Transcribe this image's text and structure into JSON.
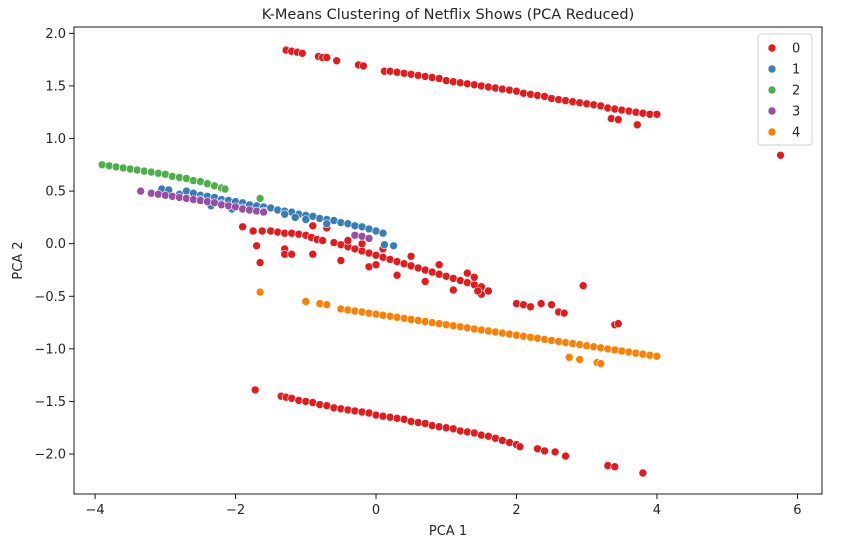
{
  "chart_data": {
    "type": "scatter",
    "title": "K-Means Clustering of Netflix Shows (PCA Reduced)",
    "xlabel": "PCA 1",
    "ylabel": "PCA 2",
    "xlim": [
      -4.3,
      6.35
    ],
    "ylim": [
      -2.38,
      2.06
    ],
    "xticks": [
      -4,
      -2,
      0,
      2,
      4,
      6
    ],
    "yticks": [
      -2.0,
      -1.5,
      -1.0,
      -0.5,
      0.0,
      0.5,
      1.0,
      1.5,
      2.0
    ],
    "xtick_labels": [
      "−4",
      "−2",
      "0",
      "2",
      "4",
      "6"
    ],
    "ytick_labels": [
      "−2.0",
      "−1.5",
      "−1.0",
      "−0.5",
      "0.0",
      "0.5",
      "1.0",
      "1.5",
      "2.0"
    ],
    "grid": false,
    "legend_position": "top-right",
    "series": [
      {
        "name": "0",
        "color": "#e41a1c",
        "points": [
          [
            -1.28,
            1.84
          ],
          [
            -1.2,
            1.83
          ],
          [
            -1.12,
            1.82
          ],
          [
            -1.05,
            1.81
          ],
          [
            -0.82,
            1.78
          ],
          [
            -0.76,
            1.77
          ],
          [
            -0.7,
            1.77
          ],
          [
            -0.56,
            1.74
          ],
          [
            -0.25,
            1.7
          ],
          [
            -0.18,
            1.69
          ],
          [
            0.12,
            1.64
          ],
          [
            0.2,
            1.64
          ],
          [
            0.3,
            1.63
          ],
          [
            0.4,
            1.62
          ],
          [
            0.5,
            1.61
          ],
          [
            0.6,
            1.6
          ],
          [
            0.7,
            1.59
          ],
          [
            0.8,
            1.58
          ],
          [
            0.9,
            1.57
          ],
          [
            1.0,
            1.55
          ],
          [
            1.1,
            1.54
          ],
          [
            1.2,
            1.53
          ],
          [
            1.3,
            1.52
          ],
          [
            1.4,
            1.51
          ],
          [
            1.5,
            1.5
          ],
          [
            1.6,
            1.49
          ],
          [
            1.7,
            1.48
          ],
          [
            1.8,
            1.47
          ],
          [
            1.9,
            1.46
          ],
          [
            2.0,
            1.45
          ],
          [
            2.1,
            1.43
          ],
          [
            2.2,
            1.42
          ],
          [
            2.3,
            1.41
          ],
          [
            2.4,
            1.4
          ],
          [
            2.5,
            1.38
          ],
          [
            2.6,
            1.37
          ],
          [
            2.7,
            1.36
          ],
          [
            2.8,
            1.35
          ],
          [
            2.9,
            1.34
          ],
          [
            3.0,
            1.33
          ],
          [
            3.1,
            1.32
          ],
          [
            3.2,
            1.31
          ],
          [
            3.3,
            1.29
          ],
          [
            3.4,
            1.28
          ],
          [
            3.5,
            1.27
          ],
          [
            3.6,
            1.26
          ],
          [
            3.7,
            1.25
          ],
          [
            3.8,
            1.24
          ],
          [
            3.9,
            1.23
          ],
          [
            4.0,
            1.23
          ],
          [
            3.35,
            1.19
          ],
          [
            3.45,
            1.18
          ],
          [
            3.72,
            1.13
          ],
          [
            5.76,
            0.84
          ],
          [
            -1.9,
            0.16
          ],
          [
            -1.75,
            0.12
          ],
          [
            -1.62,
            0.12
          ],
          [
            -1.5,
            0.12
          ],
          [
            -1.4,
            0.11
          ],
          [
            -1.3,
            0.1
          ],
          [
            -1.2,
            0.1
          ],
          [
            -1.1,
            0.09
          ],
          [
            -1.0,
            0.08
          ],
          [
            -0.92,
            0.06
          ],
          [
            -0.84,
            0.04
          ],
          [
            -0.76,
            0.03
          ],
          [
            -0.6,
            0.01
          ],
          [
            -0.5,
            -0.01
          ],
          [
            -0.4,
            -0.03
          ],
          [
            -0.3,
            -0.05
          ],
          [
            -0.2,
            -0.07
          ],
          [
            -0.1,
            -0.09
          ],
          [
            0.0,
            -0.11
          ],
          [
            0.1,
            -0.13
          ],
          [
            0.2,
            -0.15
          ],
          [
            0.3,
            -0.17
          ],
          [
            0.4,
            -0.19
          ],
          [
            0.5,
            -0.21
          ],
          [
            0.6,
            -0.23
          ],
          [
            0.7,
            -0.25
          ],
          [
            0.8,
            -0.27
          ],
          [
            0.9,
            -0.29
          ],
          [
            1.0,
            -0.31
          ],
          [
            1.1,
            -0.33
          ],
          [
            1.2,
            -0.35
          ],
          [
            1.3,
            -0.37
          ],
          [
            1.4,
            -0.39
          ],
          [
            1.5,
            -0.41
          ],
          [
            -0.9,
            0.17
          ],
          [
            -0.7,
            0.15
          ],
          [
            -0.4,
            0.03
          ],
          [
            -0.2,
            0.0
          ],
          [
            0.1,
            -0.05
          ],
          [
            0.5,
            -0.12
          ],
          [
            0.9,
            -0.2
          ],
          [
            1.3,
            -0.28
          ],
          [
            -1.7,
            -0.02
          ],
          [
            -1.3,
            -0.05
          ],
          [
            -0.9,
            -0.1
          ],
          [
            -0.5,
            -0.16
          ],
          [
            -0.1,
            -0.22
          ],
          [
            0.3,
            -0.3
          ],
          [
            0.7,
            -0.36
          ],
          [
            1.1,
            -0.44
          ],
          [
            1.5,
            -0.48
          ],
          [
            -1.65,
            -0.18
          ],
          [
            -1.3,
            -0.1
          ],
          [
            -1.2,
            -0.1
          ],
          [
            0.0,
            -0.2
          ],
          [
            1.4,
            -0.32
          ],
          [
            1.45,
            -0.45
          ],
          [
            1.6,
            -0.45
          ],
          [
            2.0,
            -0.57
          ],
          [
            2.1,
            -0.58
          ],
          [
            2.2,
            -0.6
          ],
          [
            2.35,
            -0.57
          ],
          [
            2.5,
            -0.58
          ],
          [
            2.6,
            -0.65
          ],
          [
            2.68,
            -0.66
          ],
          [
            2.95,
            -0.4
          ],
          [
            3.4,
            -0.77
          ],
          [
            3.45,
            -0.76
          ],
          [
            -1.72,
            -1.39
          ],
          [
            -1.35,
            -1.45
          ],
          [
            -1.28,
            -1.46
          ],
          [
            -1.2,
            -1.47
          ],
          [
            -1.1,
            -1.49
          ],
          [
            -1.0,
            -1.5
          ],
          [
            -0.9,
            -1.51
          ],
          [
            -0.8,
            -1.53
          ],
          [
            -0.7,
            -1.54
          ],
          [
            -0.6,
            -1.56
          ],
          [
            -0.5,
            -1.57
          ],
          [
            -0.4,
            -1.58
          ],
          [
            -0.3,
            -1.59
          ],
          [
            -0.2,
            -1.6
          ],
          [
            -0.1,
            -1.61
          ],
          [
            0.0,
            -1.63
          ],
          [
            0.1,
            -1.64
          ],
          [
            0.2,
            -1.65
          ],
          [
            0.3,
            -1.66
          ],
          [
            0.4,
            -1.67
          ],
          [
            0.5,
            -1.69
          ],
          [
            0.6,
            -1.7
          ],
          [
            0.7,
            -1.71
          ],
          [
            0.8,
            -1.73
          ],
          [
            0.9,
            -1.74
          ],
          [
            1.0,
            -1.75
          ],
          [
            1.1,
            -1.76
          ],
          [
            1.2,
            -1.78
          ],
          [
            1.3,
            -1.79
          ],
          [
            1.4,
            -1.8
          ],
          [
            1.5,
            -1.82
          ],
          [
            1.6,
            -1.83
          ],
          [
            1.7,
            -1.85
          ],
          [
            1.8,
            -1.87
          ],
          [
            1.9,
            -1.89
          ],
          [
            2.0,
            -1.91
          ],
          [
            2.05,
            -1.93
          ],
          [
            2.3,
            -1.95
          ],
          [
            2.4,
            -1.97
          ],
          [
            2.55,
            -1.98
          ],
          [
            2.7,
            -2.02
          ],
          [
            3.3,
            -2.11
          ],
          [
            3.4,
            -2.12
          ],
          [
            3.8,
            -2.18
          ]
        ]
      },
      {
        "name": "1",
        "color": "#377eb8",
        "points": [
          [
            -3.05,
            0.52
          ],
          [
            -2.95,
            0.51
          ],
          [
            -2.7,
            0.5
          ],
          [
            -2.6,
            0.48
          ],
          [
            -2.5,
            0.46
          ],
          [
            -2.4,
            0.45
          ],
          [
            -2.3,
            0.44
          ],
          [
            -2.2,
            0.42
          ],
          [
            -2.1,
            0.41
          ],
          [
            -2.0,
            0.4
          ],
          [
            -1.9,
            0.39
          ],
          [
            -1.8,
            0.37
          ],
          [
            -1.7,
            0.36
          ],
          [
            -1.6,
            0.35
          ],
          [
            -1.5,
            0.34
          ],
          [
            -1.4,
            0.32
          ],
          [
            -1.3,
            0.31
          ],
          [
            -1.2,
            0.3
          ],
          [
            -1.1,
            0.28
          ],
          [
            -1.0,
            0.27
          ],
          [
            -0.9,
            0.26
          ],
          [
            -0.8,
            0.24
          ],
          [
            -0.7,
            0.23
          ],
          [
            -0.6,
            0.22
          ],
          [
            -0.5,
            0.2
          ],
          [
            -0.4,
            0.19
          ],
          [
            -0.3,
            0.17
          ],
          [
            -0.2,
            0.16
          ],
          [
            -0.1,
            0.14
          ],
          [
            0.0,
            0.12
          ],
          [
            0.1,
            0.1
          ],
          [
            0.25,
            -0.02
          ],
          [
            0.12,
            -0.01
          ],
          [
            -2.8,
            0.47
          ],
          [
            -2.5,
            0.42
          ],
          [
            -2.2,
            0.38
          ],
          [
            -1.9,
            0.34
          ],
          [
            -1.6,
            0.31
          ],
          [
            -1.3,
            0.28
          ],
          [
            -1.0,
            0.23
          ],
          [
            -0.7,
            0.19
          ],
          [
            -1.15,
            0.25
          ],
          [
            -2.35,
            0.36
          ],
          [
            -2.05,
            0.33
          ]
        ]
      },
      {
        "name": "2",
        "color": "#4daf4a",
        "points": [
          [
            -3.9,
            0.75
          ],
          [
            -3.8,
            0.74
          ],
          [
            -3.7,
            0.73
          ],
          [
            -3.6,
            0.72
          ],
          [
            -3.5,
            0.71
          ],
          [
            -3.4,
            0.7
          ],
          [
            -3.3,
            0.69
          ],
          [
            -3.2,
            0.68
          ],
          [
            -3.1,
            0.67
          ],
          [
            -3.0,
            0.66
          ],
          [
            -2.9,
            0.64
          ],
          [
            -2.8,
            0.63
          ],
          [
            -2.7,
            0.62
          ],
          [
            -2.6,
            0.6
          ],
          [
            -2.5,
            0.59
          ],
          [
            -2.4,
            0.57
          ],
          [
            -2.3,
            0.55
          ],
          [
            -2.2,
            0.53
          ],
          [
            -2.15,
            0.52
          ],
          [
            -1.65,
            0.43
          ]
        ]
      },
      {
        "name": "3",
        "color": "#984ea3",
        "points": [
          [
            -3.35,
            0.5
          ],
          [
            -3.2,
            0.48
          ],
          [
            -3.1,
            0.47
          ],
          [
            -3.0,
            0.46
          ],
          [
            -2.9,
            0.45
          ],
          [
            -2.8,
            0.44
          ],
          [
            -2.7,
            0.43
          ],
          [
            -2.6,
            0.42
          ],
          [
            -2.5,
            0.41
          ],
          [
            -2.4,
            0.4
          ],
          [
            -2.3,
            0.39
          ],
          [
            -2.2,
            0.37
          ],
          [
            -2.1,
            0.36
          ],
          [
            -2.0,
            0.35
          ],
          [
            -1.9,
            0.33
          ],
          [
            -1.8,
            0.32
          ],
          [
            -1.7,
            0.31
          ],
          [
            -1.6,
            0.3
          ],
          [
            -0.3,
            0.08
          ],
          [
            -0.2,
            0.07
          ],
          [
            -0.1,
            0.05
          ]
        ]
      },
      {
        "name": "4",
        "color": "#ff7f00",
        "points": [
          [
            -1.65,
            -0.46
          ],
          [
            -1.0,
            -0.55
          ],
          [
            -0.8,
            -0.57
          ],
          [
            -0.7,
            -0.58
          ],
          [
            -0.5,
            -0.62
          ],
          [
            -0.4,
            -0.63
          ],
          [
            -0.3,
            -0.64
          ],
          [
            -0.2,
            -0.65
          ],
          [
            -0.1,
            -0.66
          ],
          [
            0.0,
            -0.67
          ],
          [
            0.1,
            -0.68
          ],
          [
            0.2,
            -0.69
          ],
          [
            0.3,
            -0.7
          ],
          [
            0.4,
            -0.71
          ],
          [
            0.5,
            -0.72
          ],
          [
            0.6,
            -0.73
          ],
          [
            0.7,
            -0.74
          ],
          [
            0.8,
            -0.75
          ],
          [
            0.9,
            -0.76
          ],
          [
            1.0,
            -0.77
          ],
          [
            1.1,
            -0.78
          ],
          [
            1.2,
            -0.79
          ],
          [
            1.3,
            -0.8
          ],
          [
            1.4,
            -0.81
          ],
          [
            1.5,
            -0.82
          ],
          [
            1.6,
            -0.83
          ],
          [
            1.7,
            -0.84
          ],
          [
            1.8,
            -0.85
          ],
          [
            1.9,
            -0.86
          ],
          [
            2.0,
            -0.87
          ],
          [
            2.1,
            -0.88
          ],
          [
            2.2,
            -0.89
          ],
          [
            2.3,
            -0.9
          ],
          [
            2.4,
            -0.91
          ],
          [
            2.5,
            -0.92
          ],
          [
            2.6,
            -0.93
          ],
          [
            2.7,
            -0.94
          ],
          [
            2.8,
            -0.95
          ],
          [
            2.9,
            -0.96
          ],
          [
            3.0,
            -0.97
          ],
          [
            3.1,
            -0.98
          ],
          [
            3.2,
            -0.99
          ],
          [
            3.3,
            -1.0
          ],
          [
            3.4,
            -1.01
          ],
          [
            3.5,
            -1.02
          ],
          [
            3.6,
            -1.03
          ],
          [
            3.7,
            -1.04
          ],
          [
            3.8,
            -1.05
          ],
          [
            3.9,
            -1.06
          ],
          [
            4.0,
            -1.07
          ],
          [
            2.75,
            -1.08
          ],
          [
            2.9,
            -1.1
          ],
          [
            3.15,
            -1.13
          ],
          [
            3.2,
            -1.14
          ]
        ]
      }
    ]
  }
}
